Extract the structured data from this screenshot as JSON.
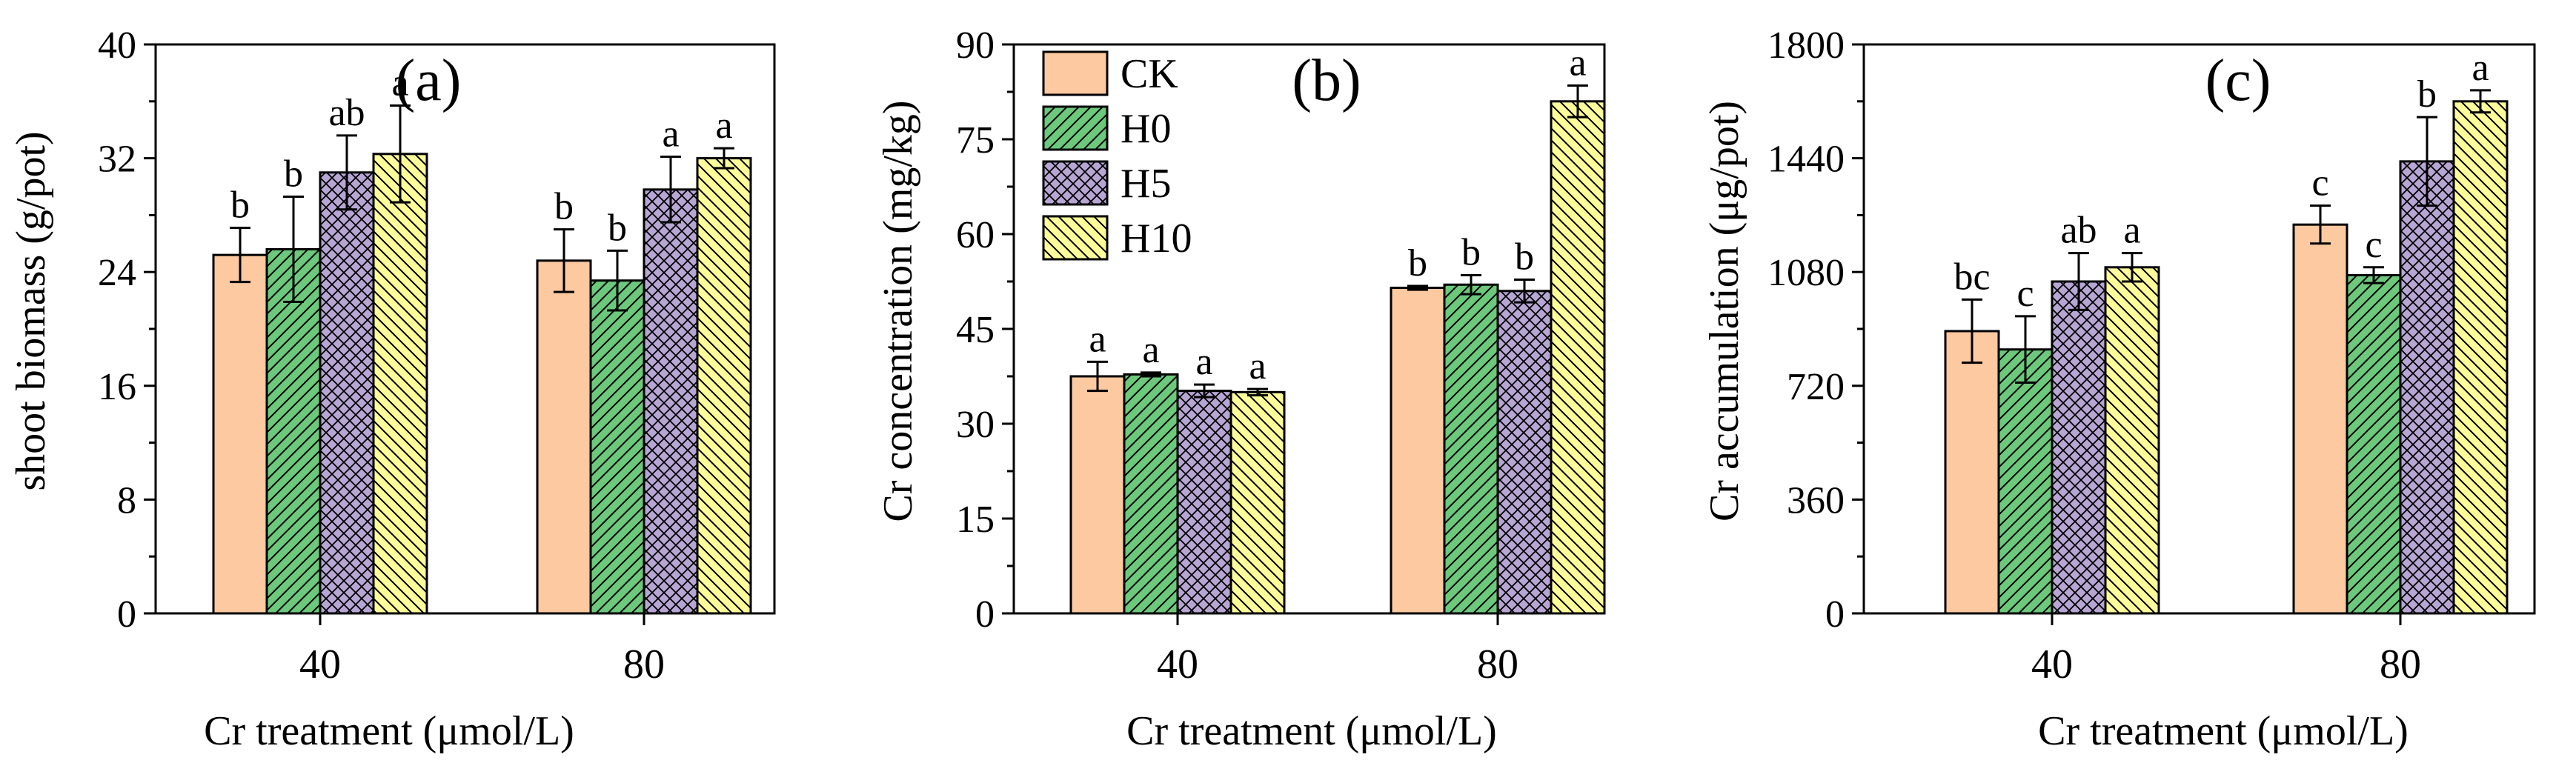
{
  "colors": {
    "CK": "#FDC9A0",
    "H0": "#6CC97C",
    "H5": "#B7A6D4",
    "H10": "#FDFD9A"
  },
  "legend": [
    "CK",
    "H0",
    "H5",
    "H10"
  ],
  "chart_data": [
    {
      "type": "bar",
      "panel_label": "(a)",
      "categories": [
        "40",
        "80"
      ],
      "series": [
        {
          "name": "CK",
          "values": [
            25.2,
            24.8
          ],
          "errors": [
            1.9,
            2.2
          ],
          "letters": [
            "b",
            "b"
          ]
        },
        {
          "name": "H0",
          "values": [
            25.6,
            23.4
          ],
          "errors": [
            3.7,
            2.1
          ],
          "letters": [
            "b",
            "b"
          ]
        },
        {
          "name": "H5",
          "values": [
            31.0,
            29.8
          ],
          "errors": [
            2.6,
            2.3
          ],
          "letters": [
            "ab",
            "a"
          ]
        },
        {
          "name": "H10",
          "values": [
            32.3,
            32.0
          ],
          "errors": [
            3.4,
            0.7
          ],
          "letters": [
            "a",
            "a"
          ]
        }
      ],
      "xlabel": "Cr treatment (μmol/L)",
      "ylabel": "shoot biomass (g/pot)",
      "ylim": [
        0,
        40
      ],
      "yticks": [
        0,
        8,
        16,
        24,
        32,
        40
      ],
      "yticklabels": [
        "0",
        "8",
        "16",
        "24",
        "32",
        "40"
      ],
      "legend_visible": false
    },
    {
      "type": "bar",
      "panel_label": "(b)",
      "categories": [
        "40",
        "80"
      ],
      "series": [
        {
          "name": "CK",
          "values": [
            37.5,
            51.5
          ],
          "errors": [
            2.3,
            0.3
          ],
          "letters": [
            "a",
            "b"
          ]
        },
        {
          "name": "H0",
          "values": [
            37.8,
            52.0
          ],
          "errors": [
            0.3,
            1.5
          ],
          "letters": [
            "a",
            "b"
          ]
        },
        {
          "name": "H5",
          "values": [
            35.2,
            51.0
          ],
          "errors": [
            1.0,
            1.8
          ],
          "letters": [
            "a",
            "b"
          ]
        },
        {
          "name": "H10",
          "values": [
            35.0,
            81.0
          ],
          "errors": [
            0.5,
            2.5
          ],
          "letters": [
            "a",
            "a"
          ]
        }
      ],
      "xlabel": "Cr treatment (μmol/L)",
      "ylabel": "Cr concentration (mg/kg)",
      "ylim": [
        0,
        90
      ],
      "yticks": [
        0,
        15,
        30,
        45,
        60,
        75,
        90
      ],
      "yticklabels": [
        "0",
        "15",
        "30",
        "45",
        "60",
        "75",
        "90"
      ],
      "legend_visible": true,
      "legend_position": "top-left"
    },
    {
      "type": "bar",
      "panel_label": "(c)",
      "categories": [
        "40",
        "80"
      ],
      "series": [
        {
          "name": "CK",
          "values": [
            893,
            1230
          ],
          "errors": [
            100,
            60
          ],
          "letters": [
            "bc",
            "c"
          ]
        },
        {
          "name": "H0",
          "values": [
            835,
            1070
          ],
          "errors": [
            105,
            25
          ],
          "letters": [
            "c",
            "c"
          ]
        },
        {
          "name": "H5",
          "values": [
            1050,
            1430
          ],
          "errors": [
            90,
            140
          ],
          "letters": [
            "ab",
            "b"
          ]
        },
        {
          "name": "H10",
          "values": [
            1095,
            1620
          ],
          "errors": [
            45,
            35
          ],
          "letters": [
            "a",
            "a"
          ]
        }
      ],
      "xlabel": "Cr treatment (μmol/L)",
      "ylabel": "Cr accumulation (μg/pot)",
      "ylim": [
        0,
        1800
      ],
      "yticks": [
        0,
        360,
        720,
        1080,
        1440,
        1800
      ],
      "yticklabels": [
        "0",
        "360",
        "720",
        "1080",
        "1440",
        "1800"
      ],
      "legend_visible": false
    }
  ]
}
